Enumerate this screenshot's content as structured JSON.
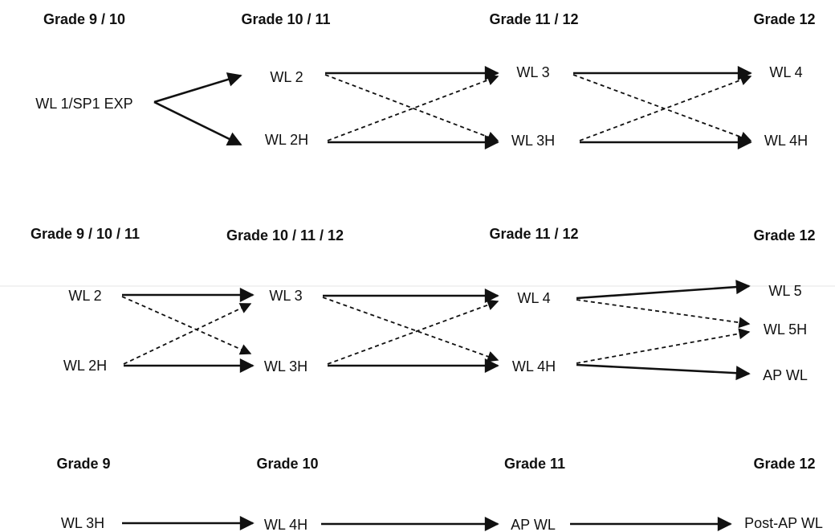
{
  "sections": [
    {
      "grades": [
        "Grade 9 / 10",
        "Grade 10 / 11",
        "Grade 11 / 12",
        "Grade 12"
      ],
      "nodes": {
        "a": "WL 1/SP1 EXP",
        "b": "WL 2",
        "c": "WL 2H",
        "d": "WL 3",
        "e": "WL 3H",
        "f": "WL 4",
        "g": "WL 4H"
      }
    },
    {
      "grades": [
        "Grade 9 / 10 / 11",
        "Grade 10 / 11 / 12",
        "Grade 11 / 12",
        "Grade 12"
      ],
      "nodes": {
        "a": "WL 2",
        "b": "WL 2H",
        "c": "WL 3",
        "d": "WL 3H",
        "e": "WL 4",
        "f": "WL 4H",
        "g": "WL 5",
        "h": "WL 5H",
        "i": "AP WL"
      }
    },
    {
      "grades": [
        "Grade 9",
        "Grade 10",
        "Grade 11",
        "Grade 12"
      ],
      "nodes": {
        "a": "WL 3H",
        "b": "WL 4H",
        "c": "AP WL",
        "d": "Post-AP WL"
      }
    }
  ]
}
